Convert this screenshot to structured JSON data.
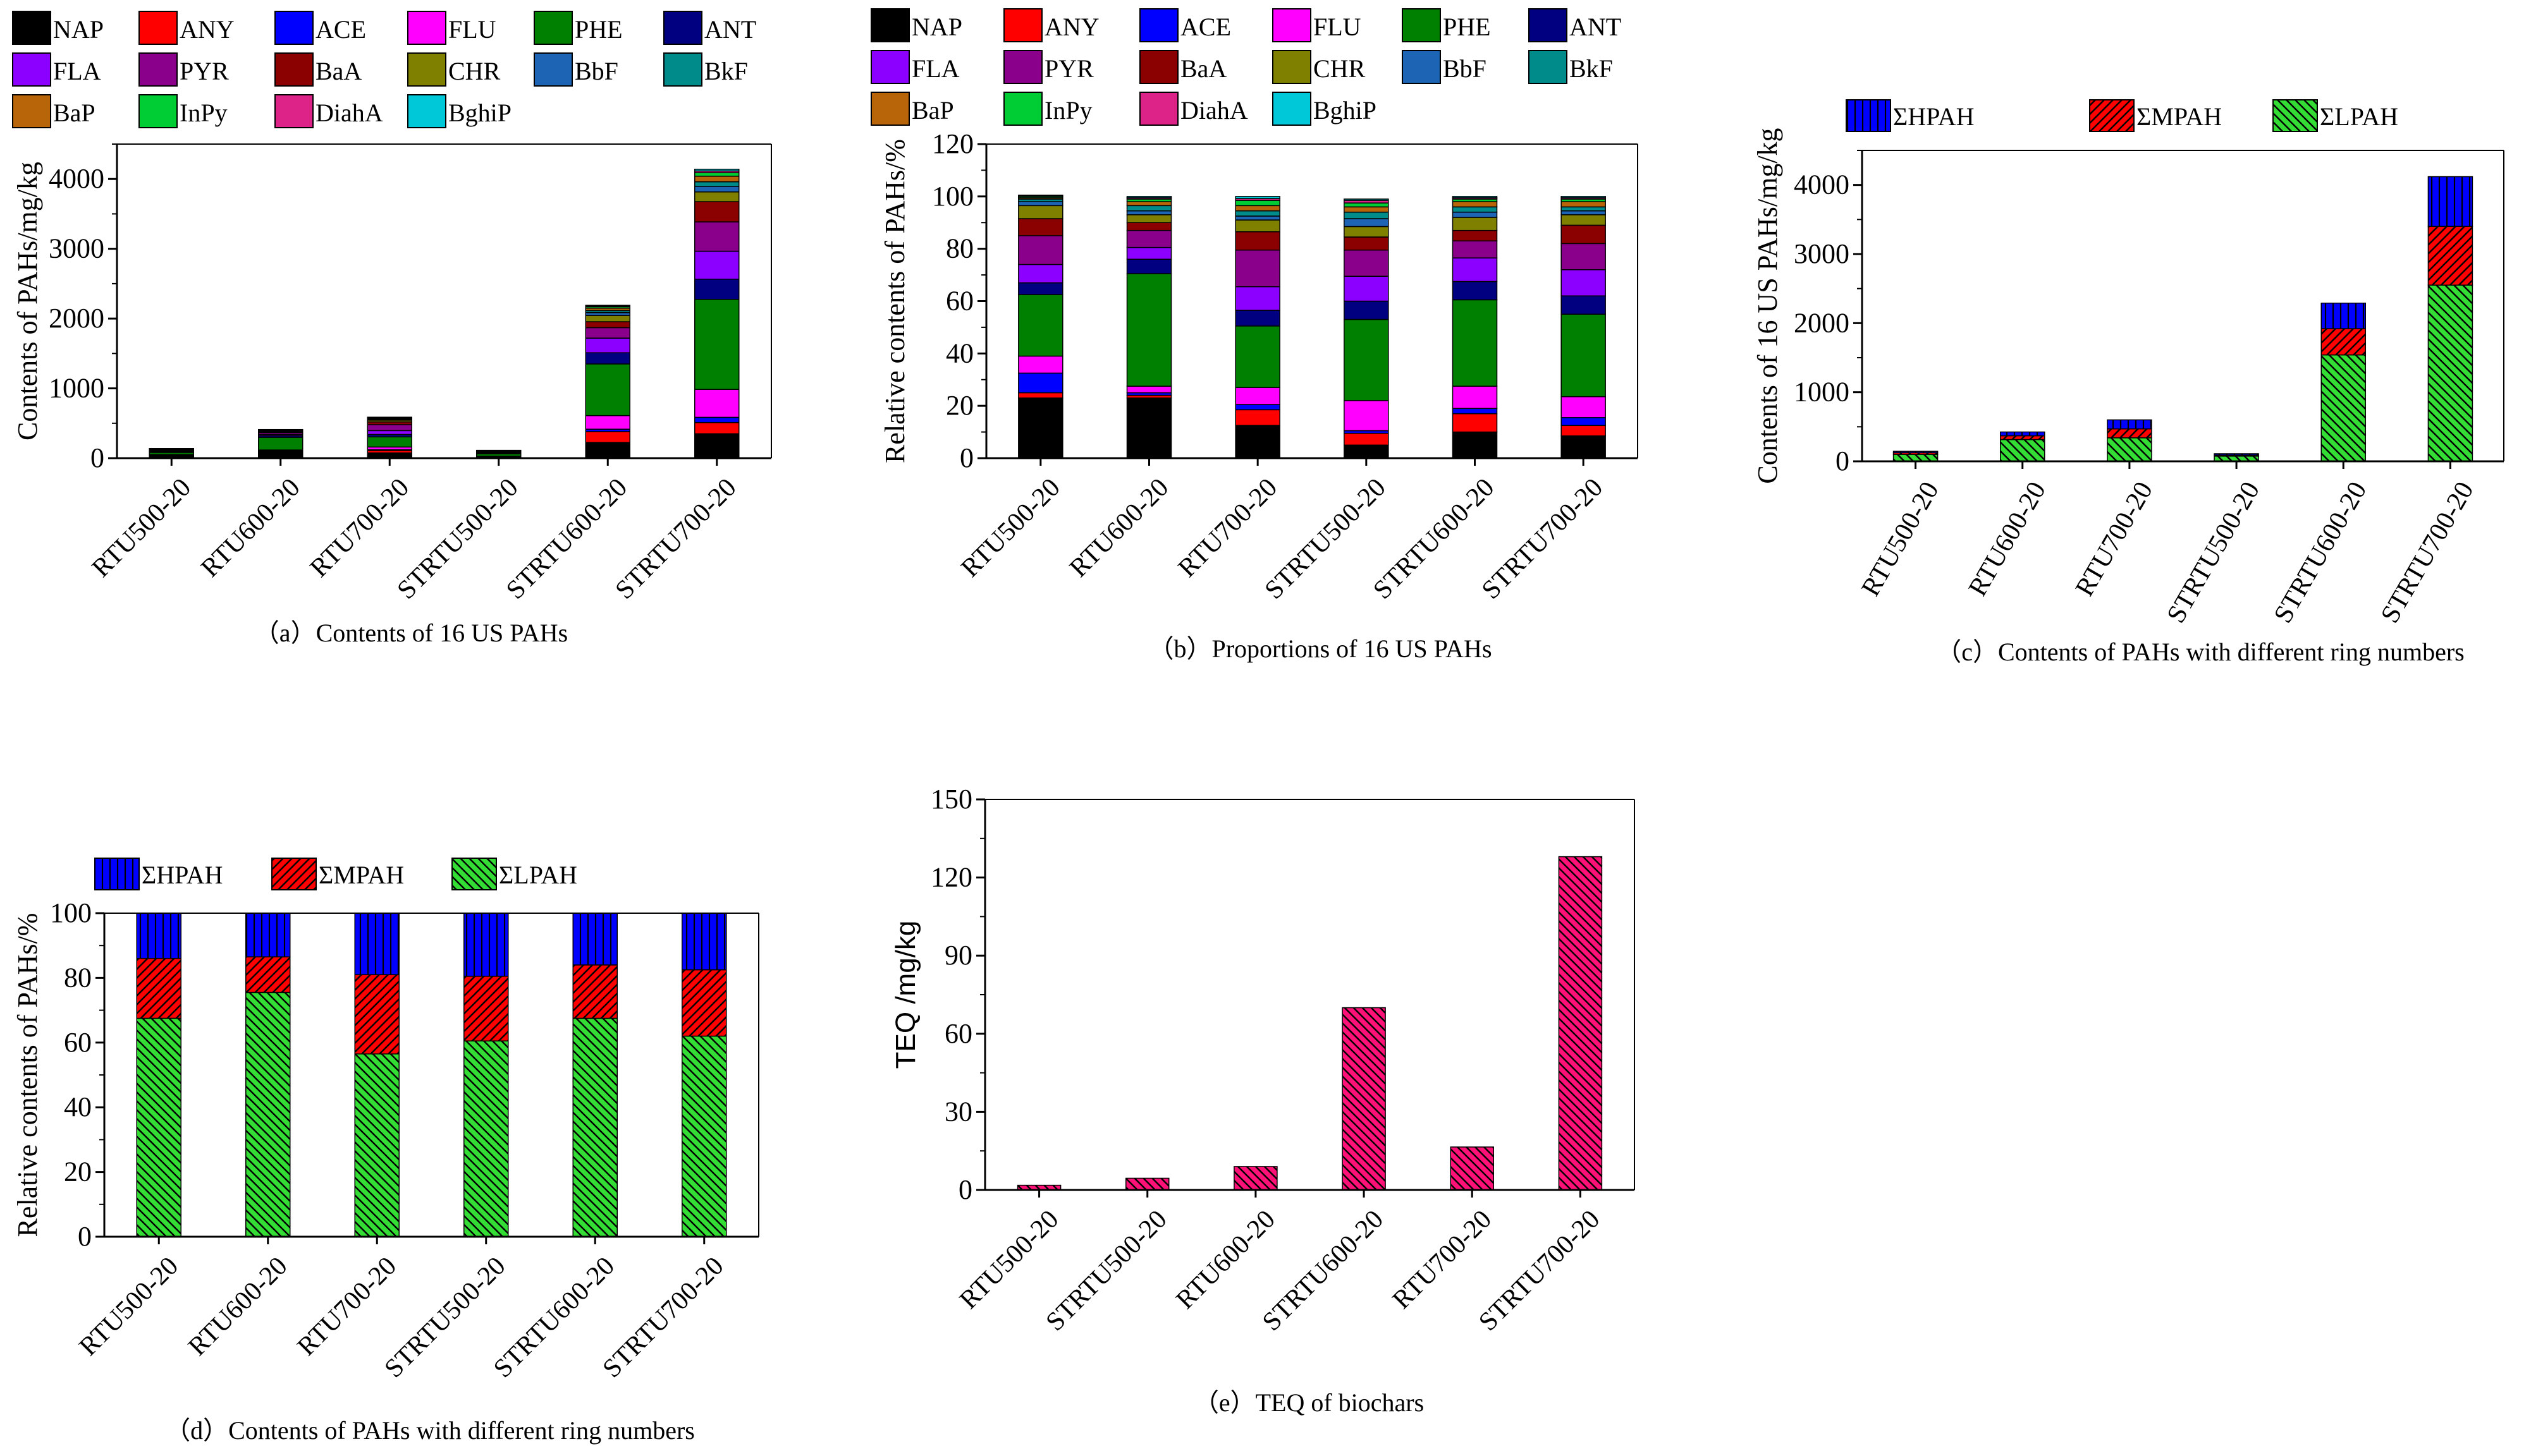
{
  "colors": {
    "NAP": "#000000",
    "ANY": "#ff0000",
    "ACE": "#0000ff",
    "FLU": "#ff00ff",
    "PHE": "#008000",
    "ANT": "#000080",
    "FLA": "#8b00ff",
    "PYR": "#8b008b",
    "BaA": "#8b0000",
    "CHR": "#808000",
    "BbF": "#1e64b4",
    "BkF": "#008b8b",
    "BaP": "#b8650a",
    "InPy": "#00cc33",
    "DiahA": "#dd2288",
    "BghiP": "#00c8d8",
    "HPAH": "#0000ff",
    "MPAH": "#ff0000",
    "LPAH": "#33dd33",
    "TEQ": "#ff1177"
  },
  "chart_data": [
    {
      "id": "a",
      "type": "bar",
      "stacked": true,
      "caption": "（a）Contents of 16 US PAHs",
      "ylabel": "Contents of PAHs/mg/kg",
      "xlabel": "",
      "ylim": [
        0,
        4500
      ],
      "yticks": [
        0,
        1000,
        2000,
        3000,
        4000
      ],
      "grid": false,
      "categories": [
        "RTU500-20",
        "RTU600-20",
        "RTU700-20",
        "STRTU500-20",
        "STRTU600-20",
        "STRTU700-20"
      ],
      "legend": [
        "NAP",
        "ANY",
        "ACE",
        "FLU",
        "PHE",
        "ANT",
        "FLA",
        "PYR",
        "BaA",
        "CHR",
        "BbF",
        "BkF",
        "BaP",
        "InPy",
        "DiahA",
        "BghiP"
      ],
      "series": [
        {
          "name": "NAP",
          "values": [
            32,
            97,
            75,
            5,
            225,
            350
          ]
        },
        {
          "name": "ANY",
          "values": [
            3,
            4,
            35,
            5,
            155,
            160
          ]
        },
        {
          "name": "ACE",
          "values": [
            9,
            5,
            10,
            6,
            35,
            75
          ]
        },
        {
          "name": "FLU",
          "values": [
            8,
            11,
            40,
            12,
            195,
            400
          ]
        },
        {
          "name": "PHE",
          "values": [
            30,
            181,
            145,
            35,
            740,
            1290
          ]
        },
        {
          "name": "ANT",
          "values": [
            6,
            24,
            35,
            8,
            160,
            290
          ]
        },
        {
          "name": "FLA",
          "values": [
            9,
            18,
            55,
            10,
            210,
            400
          ]
        },
        {
          "name": "PYR",
          "values": [
            14,
            27,
            85,
            10,
            150,
            420
          ]
        },
        {
          "name": "BaA",
          "values": [
            9,
            11,
            40,
            5,
            85,
            290
          ]
        },
        {
          "name": "CHR",
          "values": [
            6,
            11,
            25,
            5,
            90,
            140
          ]
        },
        {
          "name": "BbF",
          "values": [
            3,
            6,
            10,
            3,
            40,
            80
          ]
        },
        {
          "name": "BkF",
          "values": [
            2,
            3,
            8,
            2,
            30,
            65
          ]
        },
        {
          "name": "BaP",
          "values": [
            3,
            5,
            10,
            2,
            35,
            80
          ]
        },
        {
          "name": "InPy",
          "values": [
            2,
            3,
            6,
            2,
            20,
            50
          ]
        },
        {
          "name": "DiahA",
          "values": [
            1,
            2,
            4,
            1,
            10,
            25
          ]
        },
        {
          "name": "BghiP",
          "values": [
            1,
            2,
            4,
            1,
            10,
            25
          ]
        }
      ]
    },
    {
      "id": "b",
      "type": "bar",
      "stacked": true,
      "caption": "（b）Proportions of 16 US PAHs",
      "ylabel": "Relative contents of PAHs/%",
      "xlabel": "",
      "ylim": [
        0,
        120
      ],
      "yticks": [
        0,
        20,
        40,
        60,
        80,
        100,
        120
      ],
      "grid": false,
      "categories": [
        "RTU500-20",
        "RTU600-20",
        "RTU700-20",
        "STRTU500-20",
        "STRTU600-20",
        "STRTU700-20"
      ],
      "legend": [
        "NAP",
        "ANY",
        "ACE",
        "FLU",
        "PHE",
        "ANT",
        "FLA",
        "PYR",
        "BaA",
        "CHR",
        "BbF",
        "BkF",
        "BaP",
        "InPy",
        "DiahA",
        "BghiP"
      ],
      "series": [
        {
          "name": "NAP",
          "values": [
            23,
            23,
            12.5,
            5,
            10,
            8.5
          ]
        },
        {
          "name": "ANY",
          "values": [
            2,
            1,
            6,
            4.5,
            7,
            4
          ]
        },
        {
          "name": "ACE",
          "values": [
            7.5,
            1,
            2,
            1,
            2,
            3
          ]
        },
        {
          "name": "FLU",
          "values": [
            6.5,
            2.5,
            6.5,
            11.5,
            8.5,
            8
          ]
        },
        {
          "name": "PHE",
          "values": [
            23.5,
            43,
            23.5,
            31,
            33,
            31.5
          ]
        },
        {
          "name": "ANT",
          "values": [
            4.5,
            5.5,
            6,
            7,
            7,
            7
          ]
        },
        {
          "name": "FLA",
          "values": [
            7,
            4.5,
            9,
            9.5,
            9,
            10
          ]
        },
        {
          "name": "PYR",
          "values": [
            11,
            6.5,
            14,
            10,
            6.5,
            10
          ]
        },
        {
          "name": "BaA",
          "values": [
            6.5,
            3,
            7,
            5,
            4,
            7
          ]
        },
        {
          "name": "CHR",
          "values": [
            5,
            3,
            4.5,
            4,
            5,
            4
          ]
        },
        {
          "name": "BbF",
          "values": [
            1.5,
            1.5,
            1.5,
            3,
            2,
            1.5
          ]
        },
        {
          "name": "BkF",
          "values": [
            1,
            2,
            2,
            2.5,
            2,
            1.5
          ]
        },
        {
          "name": "BaP",
          "values": [
            0.5,
            1.5,
            2,
            2,
            2,
            2
          ]
        },
        {
          "name": "InPy",
          "values": [
            0.5,
            1,
            2,
            1.5,
            1,
            1
          ]
        },
        {
          "name": "DiahA",
          "values": [
            0.2,
            0.5,
            0.7,
            1,
            0.5,
            0.5
          ]
        },
        {
          "name": "BghiP",
          "values": [
            0.3,
            0.5,
            0.8,
            0.5,
            0.5,
            0.5
          ]
        }
      ]
    },
    {
      "id": "c",
      "type": "bar",
      "stacked": true,
      "caption": "（c）Contents of PAHs with different ring numbers",
      "ylabel": "Contents of 16 US PAHs/mg/kg",
      "xlabel": "",
      "ylim": [
        0,
        4500
      ],
      "yticks": [
        0,
        1000,
        2000,
        3000,
        4000
      ],
      "grid": false,
      "categories": [
        "RTU500-20",
        "RTU600-20",
        "RTU700-20",
        "STRTU500-20",
        "STRTU600-20",
        "STRTU700-20"
      ],
      "legend": [
        "ΣHPAH",
        "ΣMPAH",
        "ΣLPAH"
      ],
      "series": [
        {
          "name": "ΣLPAH",
          "values": [
            100,
            315,
            340,
            75,
            1540,
            2550
          ]
        },
        {
          "name": "ΣMPAH",
          "values": [
            25,
            55,
            130,
            15,
            380,
            850
          ]
        },
        {
          "name": "ΣHPAH",
          "values": [
            20,
            55,
            130,
            20,
            370,
            720
          ]
        }
      ]
    },
    {
      "id": "d",
      "type": "bar",
      "stacked": true,
      "caption": "（d）Contents of PAHs with different ring numbers",
      "ylabel": "Relative contents of PAHs/%",
      "xlabel": "",
      "ylim": [
        0,
        100
      ],
      "yticks": [
        0,
        20,
        40,
        60,
        80,
        100
      ],
      "grid": false,
      "categories": [
        "RTU500-20",
        "RTU600-20",
        "RTU700-20",
        "STRTU500-20",
        "STRTU600-20",
        "STRTU700-20"
      ],
      "legend": [
        "ΣHPAH",
        "ΣMPAH",
        "ΣLPAH"
      ],
      "series": [
        {
          "name": "ΣLPAH",
          "values": [
            67.5,
            75.5,
            56.5,
            60.5,
            67.5,
            62
          ]
        },
        {
          "name": "ΣMPAH",
          "values": [
            18.5,
            11,
            24.5,
            20,
            16.5,
            20.5
          ]
        },
        {
          "name": "ΣHPAH",
          "values": [
            14,
            13.5,
            19,
            19.5,
            16,
            17.5
          ]
        }
      ]
    },
    {
      "id": "e",
      "type": "bar",
      "stacked": false,
      "caption": "（e）TEQ of biochars",
      "ylabel": "TEQ /mg/kg",
      "xlabel": "",
      "ylim": [
        0,
        150
      ],
      "yticks": [
        0,
        30,
        60,
        90,
        120,
        150
      ],
      "grid": false,
      "categories": [
        "RTU500-20",
        "STRTU500-20",
        "RTU600-20",
        "STRTU600-20",
        "RTU700-20",
        "STRTU700-20"
      ],
      "series": [
        {
          "name": "TEQ",
          "values": [
            1.8,
            4.5,
            9,
            70,
            16.5,
            128
          ]
        }
      ]
    }
  ]
}
